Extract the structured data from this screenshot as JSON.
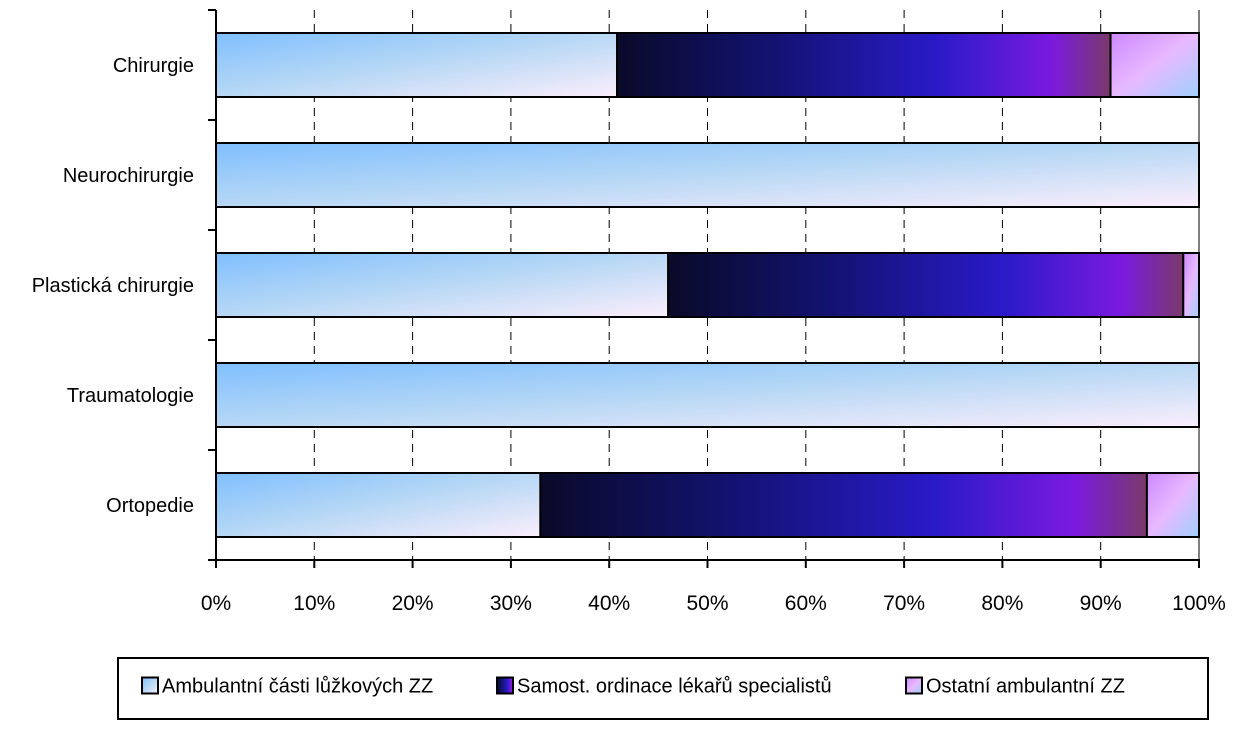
{
  "chart_data": {
    "type": "bar",
    "orientation": "horizontal",
    "stacked": "percent",
    "categories": [
      "Chirurgie",
      "Neurochirurgie",
      "Plastická chirurgie",
      "Traumatologie",
      "Ortopedie"
    ],
    "series": [
      {
        "name": "Ambulantní části lůžkových ZZ",
        "values": [
          40.8,
          100,
          46.0,
          100,
          33.0
        ],
        "color": "#7fbfff"
      },
      {
        "name": "Samost. ordinace lékařů specialistů",
        "values": [
          50.2,
          0,
          52.4,
          0,
          61.7
        ],
        "color": "#1a1a9a"
      },
      {
        "name": "Ostatní ambulantní ZZ",
        "values": [
          9.0,
          0,
          1.6,
          0,
          5.3
        ],
        "color": "#cc88ff"
      }
    ],
    "x_ticks": [
      "0%",
      "10%",
      "20%",
      "30%",
      "40%",
      "50%",
      "60%",
      "70%",
      "80%",
      "90%",
      "100%"
    ],
    "xlim": [
      0,
      100
    ],
    "grid": "vertical dashed",
    "legend_position": "bottom"
  }
}
